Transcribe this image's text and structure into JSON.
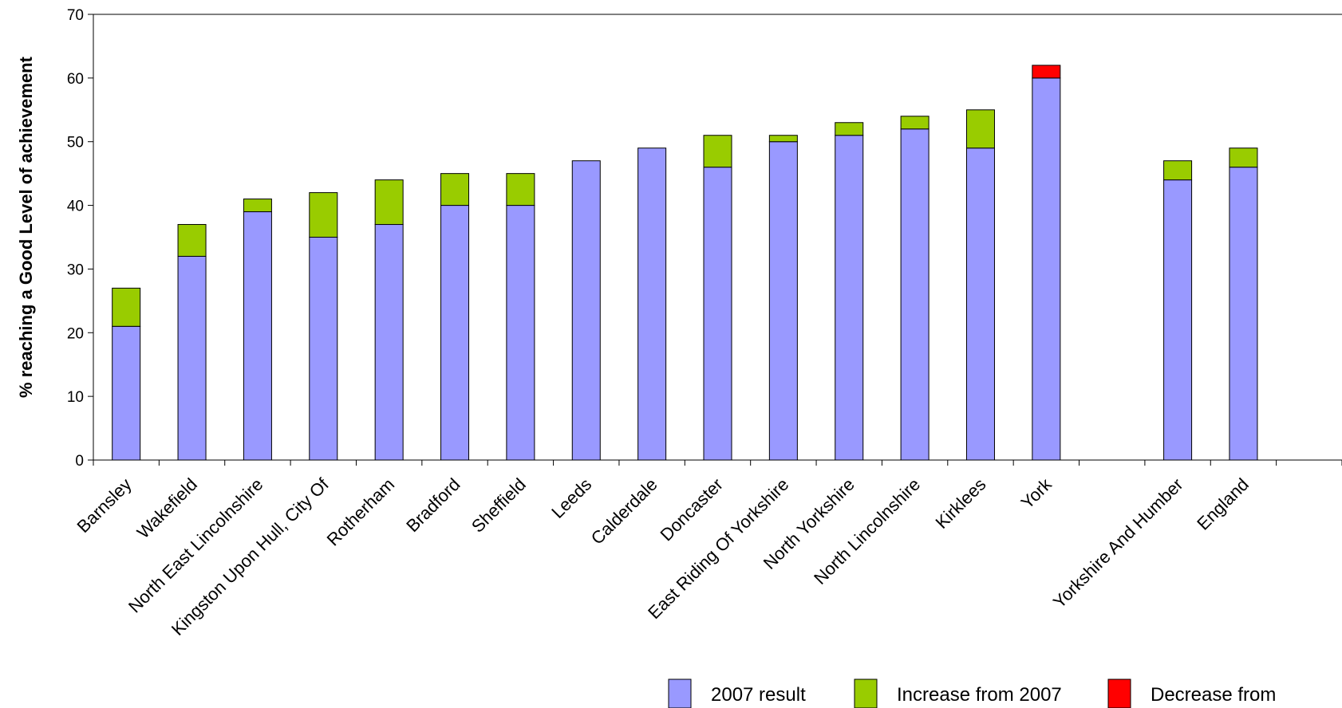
{
  "chart_data": {
    "type": "bar",
    "stacked": true,
    "title": "",
    "xlabel": "",
    "ylabel": "% reaching a Good Level of achievement",
    "ylim": [
      0,
      70
    ],
    "yticks": [
      0,
      10,
      20,
      30,
      40,
      50,
      60,
      70
    ],
    "grid": false,
    "legend_position": "bottom-right",
    "slots": 19,
    "categories": [
      {
        "label": "Barnsley",
        "slot": 0
      },
      {
        "label": "Wakefield",
        "slot": 1
      },
      {
        "label": "North East Lincolnshire",
        "slot": 2
      },
      {
        "label": "Kingston Upon Hull, City Of",
        "slot": 3
      },
      {
        "label": "Rotherham",
        "slot": 4
      },
      {
        "label": "Bradford",
        "slot": 5
      },
      {
        "label": "Sheffield",
        "slot": 6
      },
      {
        "label": "Leeds",
        "slot": 7
      },
      {
        "label": "Calderdale",
        "slot": 8
      },
      {
        "label": "Doncaster",
        "slot": 9
      },
      {
        "label": "East Riding Of Yorkshire",
        "slot": 10
      },
      {
        "label": "North Yorkshire",
        "slot": 11
      },
      {
        "label": "North Lincolnshire",
        "slot": 12
      },
      {
        "label": "Kirklees",
        "slot": 13
      },
      {
        "label": "York",
        "slot": 14
      },
      {
        "label": "Yorkshire And Humber",
        "slot": 16
      },
      {
        "label": "England",
        "slot": 17
      }
    ],
    "series": [
      {
        "name": "2007 result",
        "color": "#9999ff",
        "values": [
          21,
          32,
          39,
          35,
          37,
          40,
          40,
          47,
          49,
          46,
          50,
          51,
          52,
          49,
          60,
          44,
          46
        ]
      },
      {
        "name": "Increase from 2007",
        "color": "#99cc00",
        "values": [
          6,
          5,
          2,
          7,
          7,
          5,
          5,
          0,
          0,
          5,
          1,
          2,
          2,
          6,
          0,
          3,
          3
        ]
      },
      {
        "name": "Decrease from",
        "color": "#ff0000",
        "values": [
          0,
          0,
          0,
          0,
          0,
          0,
          0,
          0,
          0,
          0,
          0,
          0,
          0,
          0,
          2,
          0,
          0
        ]
      }
    ]
  }
}
